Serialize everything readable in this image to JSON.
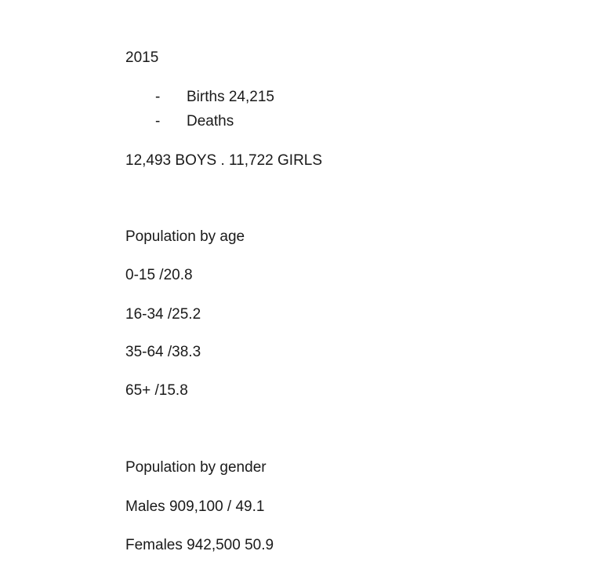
{
  "document": {
    "year": "2015",
    "bullets": [
      {
        "marker": "-",
        "text": "Births 24,215"
      },
      {
        "marker": "-",
        "text": "Deaths"
      }
    ],
    "births_split": "12,493 BOYS . 11,722 GIRLS",
    "age_section": {
      "heading": "Population by age",
      "rows": [
        "0-15 /20.8",
        "16-34 /25.2",
        "35-64 /38.3",
        "65+ /15.8"
      ]
    },
    "gender_section": {
      "heading": "Population by gender",
      "rows": [
        "Males 909,100 / 49.1",
        "Females 942,500 50.9"
      ]
    }
  }
}
